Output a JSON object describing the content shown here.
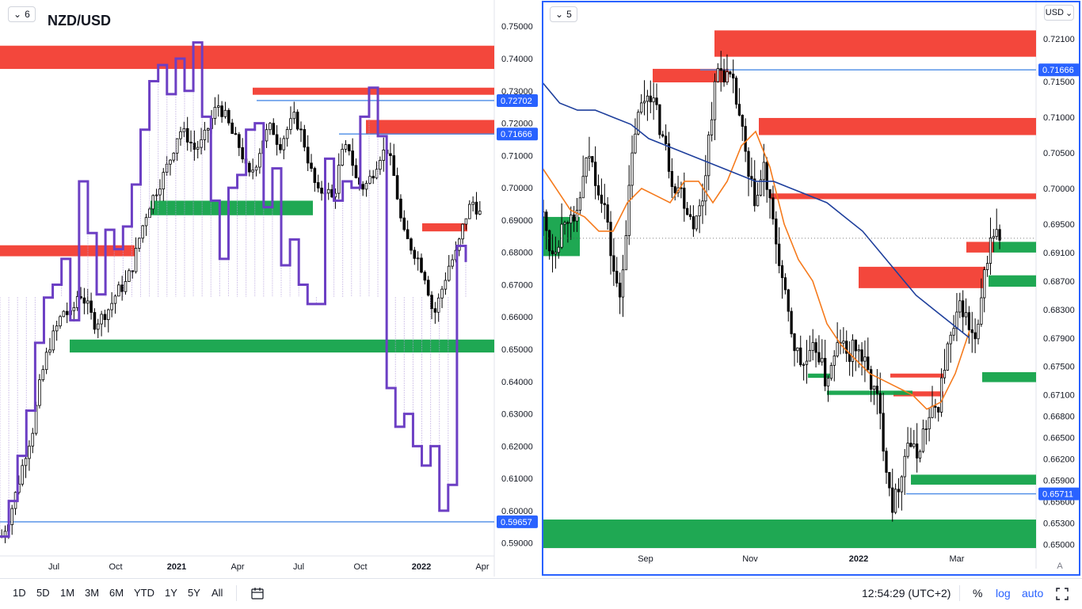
{
  "left_chart": {
    "layout_badge": "6",
    "symbol": "NZD/USD",
    "price_labels": [
      "0.75000",
      "0.74000",
      "0.73000",
      "0.72000",
      "0.71000",
      "0.70000",
      "0.69000",
      "0.68000",
      "0.67000",
      "0.66000",
      "0.65000",
      "0.64000",
      "0.63000",
      "0.62000",
      "0.61000",
      "0.60000",
      "0.59000"
    ],
    "price_badges": [
      "0.72702",
      "0.71666",
      "0.59657"
    ],
    "time_labels": [
      "Jul",
      "Oct",
      "2021",
      "Apr",
      "Jul",
      "Oct",
      "2022",
      "Apr"
    ]
  },
  "right_chart": {
    "layout_badge": "5",
    "currency": "USD",
    "price_labels": [
      "0.72100",
      "0.71500",
      "0.71000",
      "0.70500",
      "0.70000",
      "0.69500",
      "0.69100",
      "0.68700",
      "0.68300",
      "0.67900",
      "0.67500",
      "0.67100",
      "0.66800",
      "0.66500",
      "0.66200",
      "0.65900",
      "0.65600",
      "0.65300",
      "0.65000"
    ],
    "price_badges": [
      "0.71666",
      "0.65711"
    ],
    "time_labels": [
      "Sep",
      "Nov",
      "2022",
      "Mar"
    ],
    "auto_scale_label": "A"
  },
  "bottom_bar": {
    "ranges": [
      "1D",
      "5D",
      "1M",
      "3M",
      "6M",
      "YTD",
      "1Y",
      "5Y",
      "All"
    ],
    "clock": "12:54:29 (UTC+2)",
    "percent": "%",
    "log": "log",
    "auto": "auto"
  },
  "chart_data": [
    {
      "type": "line",
      "title": "NZD/USD",
      "x_ticks": [
        "Jul",
        "Oct",
        "2021",
        "Apr",
        "Jul",
        "Oct",
        "2022",
        "Apr"
      ],
      "y_ticks": [
        0.75,
        0.74,
        0.73,
        0.72,
        0.71,
        0.7,
        0.69,
        0.68,
        0.67,
        0.66,
        0.65,
        0.64,
        0.63,
        0.62,
        0.61,
        0.6,
        0.59
      ],
      "ylim": [
        0.586,
        0.753
      ],
      "close": [
        0.592,
        0.598,
        0.607,
        0.617,
        0.625,
        0.64,
        0.65,
        0.656,
        0.662,
        0.66,
        0.668,
        0.664,
        0.658,
        0.66,
        0.663,
        0.668,
        0.67,
        0.676,
        0.686,
        0.694,
        0.699,
        0.704,
        0.71,
        0.718,
        0.716,
        0.712,
        0.714,
        0.72,
        0.726,
        0.722,
        0.716,
        0.712,
        0.703,
        0.708,
        0.716,
        0.719,
        0.713,
        0.718,
        0.722,
        0.716,
        0.706,
        0.698,
        0.7,
        0.696,
        0.71,
        0.713,
        0.702,
        0.7,
        0.704,
        0.71,
        0.712,
        0.702,
        0.686,
        0.682,
        0.678,
        0.672,
        0.66,
        0.668,
        0.676,
        0.68,
        0.69,
        0.696,
        0.692
      ],
      "overlay_close": [
        0.592,
        0.603,
        0.617,
        0.631,
        0.652,
        0.666,
        0.67,
        0.678,
        0.659,
        0.702,
        0.686,
        0.667,
        0.687,
        0.681,
        0.688,
        0.701,
        0.718,
        0.733,
        0.738,
        0.729,
        0.74,
        0.73,
        0.745,
        0.722,
        0.696,
        0.678,
        0.7,
        0.704,
        0.718,
        0.72,
        0.694,
        0.706,
        0.676,
        0.684,
        0.67,
        0.664,
        0.664,
        0.709,
        0.696,
        0.702,
        0.7,
        0.722,
        0.731,
        0.716,
        0.638,
        0.626,
        0.63,
        0.62,
        0.614,
        0.62,
        0.6,
        0.608,
        0.682,
        0.677
      ],
      "zones": [
        {
          "kind": "supply",
          "from": 0.7368,
          "to": 0.744
        },
        {
          "kind": "supply",
          "from": 0.7288,
          "to": 0.731
        },
        {
          "kind": "supply",
          "from": 0.7165,
          "to": 0.721
        },
        {
          "kind": "supply",
          "from": 0.6865,
          "to": 0.689
        },
        {
          "kind": "supply",
          "from": 0.6788,
          "to": 0.6822
        },
        {
          "kind": "demand",
          "from": 0.6915,
          "to": 0.696
        },
        {
          "kind": "demand",
          "from": 0.649,
          "to": 0.653
        }
      ],
      "levels": [
        0.72702,
        0.71666,
        0.59657
      ]
    },
    {
      "type": "line",
      "x_ticks": [
        "Sep",
        "Nov",
        "2022",
        "Mar"
      ],
      "y_ticks": [
        0.721,
        0.715,
        0.71,
        0.705,
        0.7,
        0.695,
        0.691,
        0.687,
        0.683,
        0.679,
        0.675,
        0.671,
        0.668,
        0.665,
        0.662,
        0.659,
        0.656,
        0.653,
        0.65
      ],
      "ylim": [
        0.6495,
        0.7238
      ],
      "close": [
        0.696,
        0.691,
        0.693,
        0.697,
        0.694,
        0.7,
        0.705,
        0.701,
        0.698,
        0.69,
        0.684,
        0.696,
        0.708,
        0.712,
        0.714,
        0.71,
        0.706,
        0.701,
        0.7,
        0.697,
        0.695,
        0.699,
        0.71,
        0.717,
        0.716,
        0.714,
        0.709,
        0.701,
        0.698,
        0.703,
        0.696,
        0.69,
        0.683,
        0.678,
        0.675,
        0.676,
        0.678,
        0.673,
        0.675,
        0.679,
        0.676,
        0.678,
        0.676,
        0.673,
        0.67,
        0.662,
        0.655,
        0.66,
        0.665,
        0.662,
        0.666,
        0.668,
        0.67,
        0.677,
        0.68,
        0.684,
        0.68,
        0.678,
        0.688,
        0.694,
        0.693
      ],
      "ma_fast": [
        0.703,
        0.7,
        0.697,
        0.696,
        0.694,
        0.694,
        0.698,
        0.7,
        0.699,
        0.698,
        0.701,
        0.701,
        0.698,
        0.701,
        0.706,
        0.708,
        0.703,
        0.695,
        0.69,
        0.687,
        0.681,
        0.678,
        0.676,
        0.674,
        0.673,
        0.672,
        0.671,
        0.669,
        0.67,
        0.674,
        0.68
      ],
      "ma_slow": [
        0.715,
        0.712,
        0.711,
        0.711,
        0.71,
        0.709,
        0.707,
        0.706,
        0.705,
        0.704,
        0.703,
        0.702,
        0.701,
        0.701,
        0.7,
        0.699,
        0.698,
        0.696,
        0.694,
        0.691,
        0.688,
        0.685,
        0.683,
        0.681,
        0.679
      ],
      "zones": [
        {
          "kind": "supply",
          "from": 0.7185,
          "to": 0.7222
        },
        {
          "kind": "supply",
          "from": 0.7149,
          "to": 0.7168
        },
        {
          "kind": "supply",
          "from": 0.7075,
          "to": 0.7099
        },
        {
          "kind": "supply",
          "from": 0.6985,
          "to": 0.6993
        },
        {
          "kind": "supply",
          "from": 0.691,
          "to": 0.6925
        },
        {
          "kind": "supply",
          "from": 0.686,
          "to": 0.689
        },
        {
          "kind": "supply",
          "from": 0.6735,
          "to": 0.674
        },
        {
          "kind": "supply",
          "from": 0.6708,
          "to": 0.6715
        },
        {
          "kind": "demand",
          "from": 0.6905,
          "to": 0.696
        },
        {
          "kind": "demand",
          "from": 0.691,
          "to": 0.6925
        },
        {
          "kind": "demand",
          "from": 0.6862,
          "to": 0.6878
        },
        {
          "kind": "demand",
          "from": 0.6728,
          "to": 0.6742
        },
        {
          "kind": "demand",
          "from": 0.6734,
          "to": 0.674
        },
        {
          "kind": "demand",
          "from": 0.671,
          "to": 0.6716
        },
        {
          "kind": "demand",
          "from": 0.6584,
          "to": 0.6598
        },
        {
          "kind": "demand",
          "from": 0.6495,
          "to": 0.6535
        }
      ],
      "levels": [
        0.71666,
        0.65711
      ],
      "last_price": 0.693
    }
  ],
  "colors": {
    "supply": "#f23d32",
    "demand": "#13a34a",
    "overlay": "#6c3fc4",
    "ma_fast": "#f57a1c",
    "ma_slow": "#1e3f9c",
    "level": "#4a8be6",
    "badge": "#2962ff",
    "frame": "#2962ff"
  }
}
